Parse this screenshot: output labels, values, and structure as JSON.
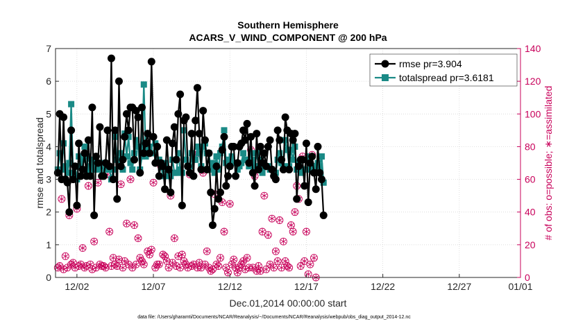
{
  "chart_data": {
    "type": "line",
    "title": "Southern Hemisphere",
    "subtitle": "ACARS_V_WIND_COMPONENT @ 200 hPa",
    "xlabel": "Dec.01,2014 00:00:00 start",
    "ylabel": "rmse and totalspread",
    "y2label": "# of obs: o=possible; ∗=assimilated",
    "footnote": "data file: /Users/gharamti/Documents/NCAR/Reanalysis/~/Documents/NCAR/Reanalysis/webpub/obs_diag_output_2014-12.nc",
    "xlim": [
      0.6,
      31.0
    ],
    "ylim": [
      0,
      7
    ],
    "y2lim": [
      0,
      140
    ],
    "x_ticks": [
      {
        "label": "12/02",
        "value": 2
      },
      {
        "label": "12/07",
        "value": 7
      },
      {
        "label": "12/12",
        "value": 12
      },
      {
        "label": "12/17",
        "value": 17
      },
      {
        "label": "12/22",
        "value": 22
      },
      {
        "label": "12/27",
        "value": 27
      },
      {
        "label": "01/01",
        "value": 31
      }
    ],
    "y_ticks": [
      "0",
      "1",
      "2",
      "3",
      "4",
      "5",
      "6",
      "7"
    ],
    "y2_ticks": [
      "0",
      "20",
      "40",
      "60",
      "80",
      "100",
      "120",
      "140"
    ],
    "grid": true,
    "legend_position": "top-right",
    "series": [
      {
        "name": "rmse pr=3.904",
        "color": "#000000",
        "marker": "circle",
        "x_start": 0.75,
        "x_step": 0.125,
        "values": [
          3.2,
          5.0,
          3.0,
          4.9,
          3.0,
          2.9,
          2.0,
          4.5,
          3.0,
          3.4,
          2.2,
          4.1,
          3.1,
          3.3,
          3.8,
          3.1,
          4.2,
          3.1,
          5.2,
          1.9,
          3.7,
          3.5,
          4.6,
          3.1,
          3.1,
          3.5,
          4.5,
          3.4,
          6.7,
          3.0,
          4.5,
          2.4,
          6.0,
          3.4,
          3.6,
          4.3,
          5.0,
          4.5,
          5.2,
          5.2,
          3.6,
          5.1,
          4.9,
          3.2,
          5.2,
          3.8,
          4.1,
          4.4,
          3.8,
          6.6,
          4.3,
          3.5,
          4.0,
          3.1,
          3.5,
          3.4,
          2.7,
          4.2,
          3.3,
          2.6,
          4.1,
          4.6,
          3.6,
          5.0,
          5.6,
          2.2,
          4.8,
          4.9,
          3.4,
          3.2,
          4.4,
          3.1,
          4.8,
          5.8,
          4.4,
          3.3,
          5.1,
          4.2,
          3.3,
          3.8,
          2.6,
          1.6,
          2.1,
          3.4,
          2.4,
          2.6,
          3.9,
          4.3,
          2.8,
          3.1,
          3.4,
          4.0,
          4.0,
          3.1,
          3.5,
          4.0,
          4.1,
          4.5,
          4.2,
          4.7,
          3.5,
          4.3,
          3.2,
          2.8,
          4.4,
          3.3,
          4.0,
          3.5,
          3.8,
          3.4,
          4.0,
          4.2,
          3.3,
          3.1,
          3.0,
          4.5,
          4.2,
          3.6,
          3.3,
          4.9,
          4.5,
          3.3,
          4.4,
          4.2,
          4.4,
          2.4,
          3.4,
          3.6,
          3.6,
          2.8,
          4.1,
          2.3,
          3.5,
          3.7,
          3.2,
          2.7,
          4.0,
          3.2,
          3.0,
          1.9
        ]
      },
      {
        "name": "totalspread pr=3.6181",
        "color": "#1a8a86",
        "marker": "square",
        "x_start": 0.75,
        "x_step": 0.125,
        "values": [
          3.3,
          3.8,
          3.3,
          4.1,
          3.4,
          3.2,
          3.5,
          5.3,
          3.2,
          3.4,
          3.0,
          3.7,
          3.4,
          3.6,
          4.0,
          3.3,
          3.7,
          3.4,
          3.6,
          3.3,
          3.5,
          3.3,
          3.4,
          3.5,
          3.5,
          3.3,
          3.4,
          3.3,
          3.0,
          3.3,
          4.3,
          3.6,
          3.6,
          3.8,
          3.3,
          4.4,
          3.7,
          4.3,
          3.5,
          3.3,
          3.8,
          4.2,
          4.0,
          3.3,
          3.7,
          5.9,
          3.7,
          3.9,
          4.0,
          3.8,
          3.8,
          4.1,
          3.6,
          3.6,
          3.4,
          3.1,
          3.5,
          3.3,
          3.1,
          3.1,
          3.6,
          3.2,
          3.2,
          3.8,
          3.3,
          3.2,
          4.5,
          3.6,
          3.4,
          3.4,
          3.8,
          3.6,
          3.6,
          4.0,
          3.8,
          3.4,
          4.0,
          4.1,
          3.8,
          3.8,
          3.3,
          3.5,
          3.2,
          3.7,
          3.3,
          3.8,
          4.0,
          4.5,
          3.5,
          3.6,
          3.4,
          3.7,
          3.5,
          3.5,
          3.3,
          3.4,
          3.5,
          3.8,
          3.6,
          3.6,
          3.4,
          3.8,
          3.6,
          3.4,
          3.8,
          3.4,
          3.6,
          3.2,
          3.4,
          3.4,
          3.4,
          3.3,
          3.3,
          3.2,
          3.2,
          3.6,
          3.8,
          3.5,
          3.4,
          4.2,
          3.9,
          3.4,
          3.9,
          3.6,
          4.0,
          3.3,
          3.5,
          3.2,
          3.3,
          3.3,
          3.6,
          3.7,
          3.3,
          3.4,
          3.3,
          3.4,
          3.5,
          3.4,
          3.7,
          2.9
        ]
      },
      {
        "name": "obs possible",
        "color": "#c8005a",
        "marker": "open-circle",
        "axis": "right",
        "x_start": 0.75,
        "x_step": 0.125,
        "values": [
          6,
          7,
          48,
          5,
          13,
          6,
          38,
          8,
          9,
          6,
          42,
          7,
          8,
          18,
          6,
          7,
          56,
          8,
          5,
          22,
          6,
          58,
          8,
          7,
          7,
          6,
          63,
          28,
          7,
          12,
          8,
          7,
          11,
          57,
          6,
          10,
          33,
          8,
          60,
          6,
          32,
          8,
          24,
          12,
          10,
          8,
          76,
          16,
          14,
          17,
          58,
          6,
          8,
          8,
          68,
          14,
          13,
          10,
          6,
          50,
          9,
          24,
          7,
          13,
          6,
          14,
          10,
          8,
          6,
          63,
          7,
          8,
          75,
          6,
          9,
          6,
          64,
          8,
          16,
          6,
          4,
          5,
          51,
          8,
          7,
          12,
          46,
          28,
          6,
          3,
          45,
          8,
          11,
          6,
          3,
          6,
          8,
          10,
          5,
          12,
          6,
          78,
          6,
          62,
          4,
          7,
          4,
          28,
          50,
          5,
          26,
          8,
          36,
          6,
          16,
          10,
          35,
          6,
          22,
          10,
          7,
          6,
          32,
          28,
          40,
          56,
          48,
          7,
          74,
          10,
          28,
          2,
          8,
          75,
          12,
          0
        ]
      },
      {
        "name": "obs assimilated",
        "color": "#c8005a",
        "marker": "asterisk",
        "axis": "right",
        "x_start": 0.75,
        "x_step": 0.125,
        "values": [
          6,
          7,
          48,
          5,
          13,
          6,
          38,
          8,
          9,
          6,
          42,
          7,
          8,
          18,
          6,
          7,
          56,
          8,
          5,
          22,
          6,
          58,
          8,
          7,
          7,
          6,
          63,
          28,
          7,
          12,
          8,
          7,
          11,
          57,
          6,
          10,
          33,
          8,
          60,
          6,
          32,
          8,
          24,
          12,
          10,
          8,
          76,
          16,
          14,
          17,
          58,
          6,
          8,
          8,
          68,
          14,
          13,
          10,
          6,
          50,
          9,
          24,
          7,
          13,
          6,
          14,
          10,
          8,
          6,
          63,
          7,
          8,
          75,
          6,
          9,
          6,
          64,
          8,
          16,
          6,
          4,
          5,
          51,
          8,
          7,
          12,
          46,
          28,
          6,
          3,
          45,
          8,
          11,
          6,
          3,
          6,
          8,
          10,
          5,
          12,
          6,
          78,
          6,
          62,
          4,
          7,
          4,
          28,
          50,
          5,
          26,
          8,
          36,
          6,
          16,
          10,
          35,
          6,
          22,
          10,
          7,
          6,
          32,
          28,
          40,
          56,
          48,
          7,
          74,
          10,
          28,
          2,
          8,
          75,
          12,
          0
        ]
      }
    ]
  }
}
